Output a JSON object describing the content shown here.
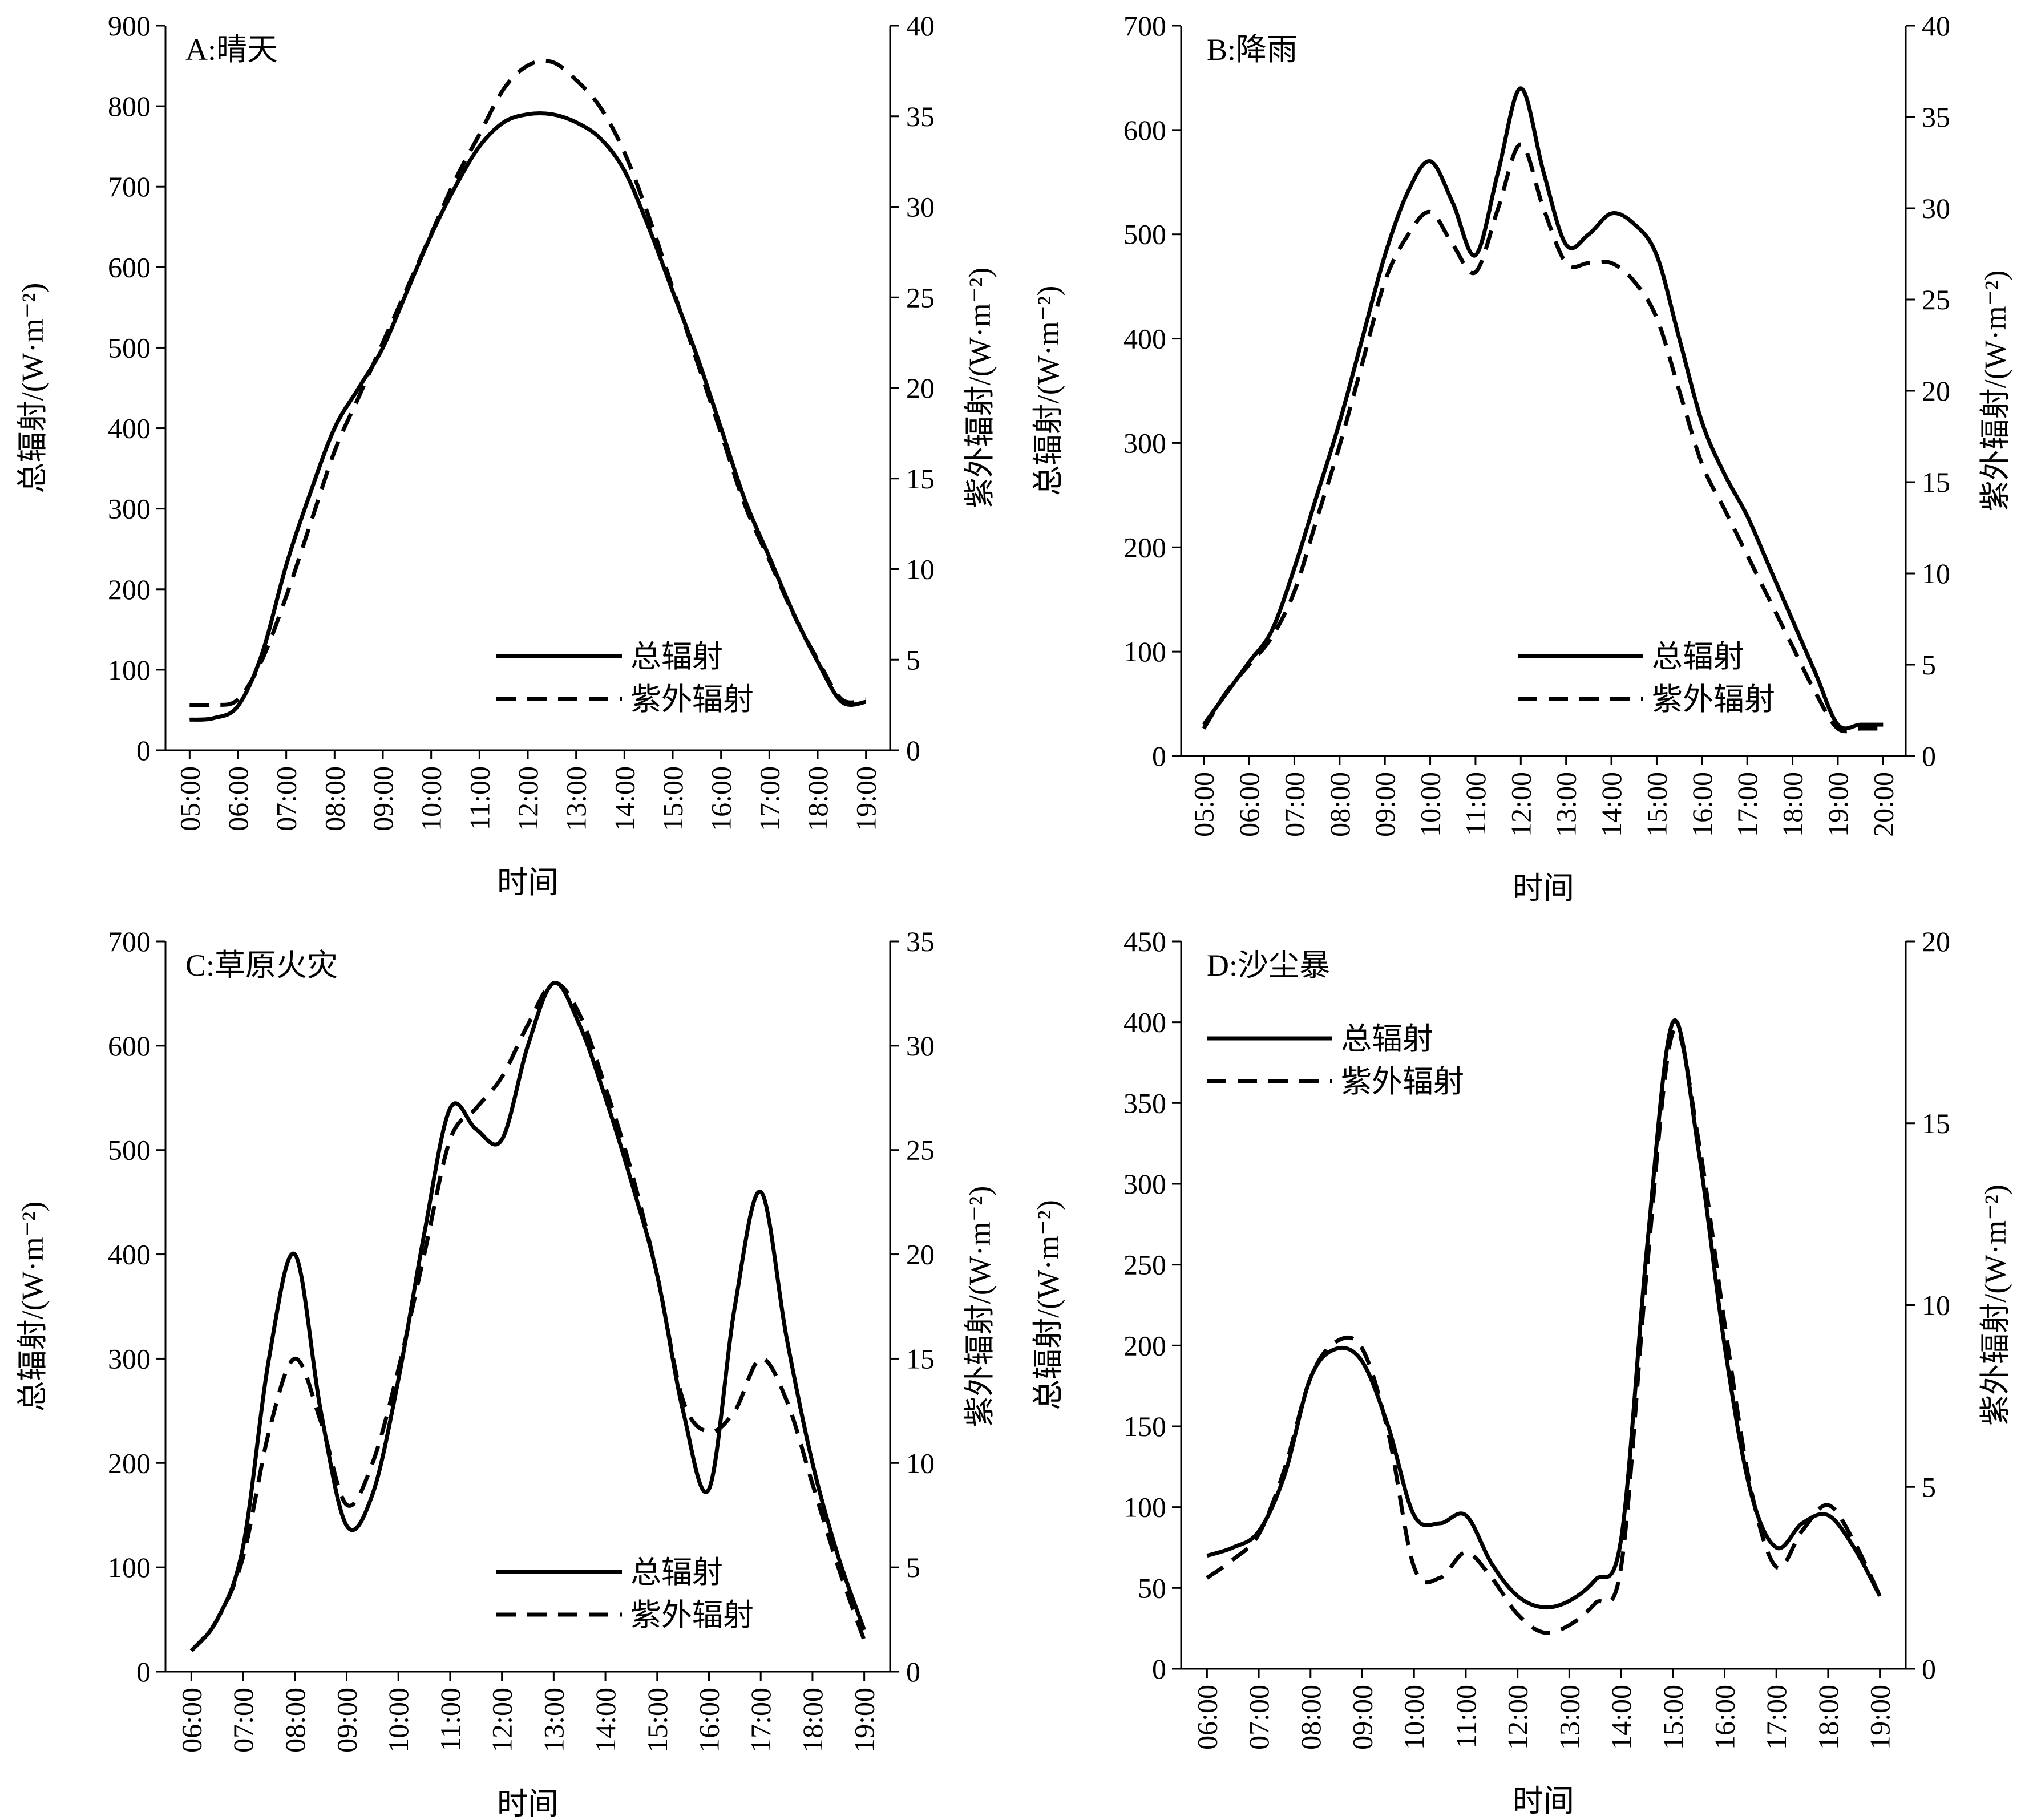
{
  "chart_data": [
    {
      "type": "line",
      "title": "A:晴天",
      "xlabel": "时间",
      "ylabel": "总辐射/(W·m⁻²)",
      "y2label": "紫外辐射/(W·m⁻²)",
      "categories": [
        "05:00",
        "06:00",
        "07:00",
        "08:00",
        "09:00",
        "10:00",
        "11:00",
        "12:00",
        "13:00",
        "14:00",
        "15:00",
        "16:00",
        "17:00",
        "18:00",
        "19:00"
      ],
      "ylim": [
        0,
        900
      ],
      "yticks": [
        0,
        100,
        200,
        300,
        400,
        500,
        600,
        700,
        800,
        900
      ],
      "y2lim": [
        0,
        40
      ],
      "y2ticks": [
        0,
        5,
        10,
        15,
        20,
        25,
        30,
        35,
        40
      ],
      "legend": {
        "position": "lower-right",
        "items": [
          "总辐射",
          "紫外辐射"
        ]
      },
      "grid": false,
      "series": [
        {
          "name": "总辐射",
          "axis": "left",
          "style": "solid",
          "x": [
            0,
            0.5,
            1,
            1.5,
            2,
            2.5,
            3,
            3.5,
            4,
            4.5,
            5,
            5.5,
            6,
            6.5,
            7,
            7.5,
            8,
            8.5,
            9,
            9.5,
            10,
            10.5,
            11,
            11.5,
            12,
            12.5,
            13,
            13.5,
            14
          ],
          "values": [
            38,
            40,
            55,
            120,
            230,
            320,
            400,
            450,
            500,
            570,
            640,
            700,
            750,
            780,
            790,
            790,
            780,
            760,
            720,
            650,
            570,
            490,
            400,
            310,
            240,
            170,
            110,
            60,
            60
          ]
        },
        {
          "name": "紫外辐射",
          "axis": "right",
          "style": "dashed",
          "x": [
            0,
            0.5,
            1,
            1.5,
            2,
            2.5,
            3,
            3.5,
            4,
            4.5,
            5,
            5.5,
            6,
            6.5,
            7,
            7.5,
            8,
            8.5,
            9,
            9.5,
            10,
            10.5,
            11,
            11.5,
            12,
            12.5,
            13,
            13.5,
            14
          ],
          "values": [
            2.5,
            2.5,
            2.8,
            5.0,
            8.5,
            12.5,
            16.5,
            19.5,
            22.5,
            25.5,
            28.5,
            31.5,
            34.0,
            36.5,
            37.8,
            38.0,
            37.0,
            35.5,
            33.0,
            29.5,
            25.5,
            21.5,
            17.5,
            13.5,
            10.5,
            7.5,
            5.0,
            2.8,
            2.8
          ]
        }
      ]
    },
    {
      "type": "line",
      "title": "B:降雨",
      "xlabel": "时间",
      "ylabel": "总辐射/(W·m⁻²)",
      "y2label": "紫外辐射/(W·m⁻²)",
      "categories": [
        "05:00",
        "06:00",
        "07:00",
        "08:00",
        "09:00",
        "10:00",
        "11:00",
        "12:00",
        "13:00",
        "14:00",
        "15:00",
        "16:00",
        "17:00",
        "18:00",
        "19:00",
        "20:00"
      ],
      "ylim": [
        0,
        700
      ],
      "yticks": [
        0,
        100,
        200,
        300,
        400,
        500,
        600,
        700
      ],
      "y2lim": [
        0,
        40
      ],
      "y2ticks": [
        0,
        5,
        10,
        15,
        20,
        25,
        30,
        35,
        40
      ],
      "legend": {
        "position": "lower-right",
        "items": [
          "总辐射",
          "紫外辐射"
        ]
      },
      "grid": false,
      "series": [
        {
          "name": "总辐射",
          "axis": "left",
          "style": "solid",
          "x": [
            0,
            0.5,
            1,
            1.5,
            2,
            2.5,
            3,
            3.5,
            4,
            4.5,
            5,
            5.5,
            6,
            6.5,
            7,
            7.5,
            8,
            8.5,
            9,
            9.5,
            10,
            10.5,
            11,
            11.5,
            12,
            12.5,
            13,
            13.5,
            14,
            14.5,
            15
          ],
          "values": [
            30,
            60,
            90,
            120,
            180,
            250,
            320,
            400,
            480,
            540,
            570,
            530,
            480,
            560,
            640,
            560,
            490,
            500,
            520,
            510,
            480,
            400,
            320,
            270,
            230,
            180,
            130,
            80,
            30,
            30,
            30
          ]
        },
        {
          "name": "紫外辐射",
          "axis": "right",
          "style": "dashed",
          "x": [
            0,
            0.5,
            1,
            1.5,
            2,
            2.5,
            3,
            3.5,
            4,
            4.5,
            5,
            5.5,
            6,
            6.5,
            7,
            7.5,
            8,
            8.5,
            9,
            9.5,
            10,
            10.5,
            11,
            11.5,
            12,
            12.5,
            13,
            13.5,
            14,
            14.5,
            15
          ],
          "values": [
            1.5,
            3.5,
            5.0,
            6.5,
            9.0,
            13.0,
            17.0,
            21.5,
            26.0,
            28.5,
            29.8,
            28.0,
            26.5,
            30.0,
            33.5,
            30.0,
            27.0,
            27.0,
            27.0,
            26.0,
            24.0,
            20.0,
            16.0,
            13.5,
            11.0,
            8.5,
            6.0,
            3.5,
            1.5,
            1.5,
            1.5
          ]
        }
      ]
    },
    {
      "type": "line",
      "title": "C:草原火灾",
      "xlabel": "时间",
      "ylabel": "总辐射/(W·m⁻²)",
      "y2label": "紫外辐射/(W·m⁻²)",
      "categories": [
        "06:00",
        "07:00",
        "08:00",
        "09:00",
        "10:00",
        "11:00",
        "12:00",
        "13:00",
        "14:00",
        "15:00",
        "16:00",
        "17:00",
        "18:00",
        "19:00"
      ],
      "ylim": [
        0,
        700
      ],
      "yticks": [
        0,
        100,
        200,
        300,
        400,
        500,
        600,
        700
      ],
      "y2lim": [
        0,
        35
      ],
      "y2ticks": [
        0,
        5,
        10,
        15,
        20,
        25,
        30,
        35
      ],
      "legend": {
        "position": "lower-right",
        "items": [
          "总辐射",
          "紫外辐射"
        ]
      },
      "grid": false,
      "series": [
        {
          "name": "总辐射",
          "axis": "left",
          "style": "solid",
          "x": [
            0,
            0.5,
            1,
            1.5,
            2,
            2.5,
            3,
            3.5,
            4,
            4.5,
            5,
            5.5,
            6,
            6.5,
            7,
            7.5,
            8,
            8.5,
            9,
            9.5,
            10,
            10.5,
            11,
            11.5,
            12,
            12.5,
            13
          ],
          "values": [
            20,
            50,
            120,
            300,
            400,
            250,
            140,
            170,
            280,
            420,
            540,
            520,
            510,
            600,
            660,
            620,
            550,
            470,
            380,
            250,
            175,
            350,
            460,
            320,
            200,
            110,
            40
          ]
        },
        {
          "name": "紫外辐射",
          "axis": "right",
          "style": "dashed",
          "x": [
            0,
            0.5,
            1,
            1.5,
            2,
            2.5,
            3,
            3.5,
            4,
            4.5,
            5,
            5.5,
            6,
            6.5,
            7,
            7.5,
            8,
            8.5,
            9,
            9.5,
            10,
            10.5,
            11,
            11.5,
            12,
            12.5,
            13
          ],
          "values": [
            1.0,
            2.5,
            5.5,
            11.5,
            15.0,
            12.0,
            8.0,
            10.0,
            14.5,
            20.0,
            25.5,
            27.0,
            28.5,
            31.0,
            33.0,
            31.5,
            28.0,
            24.0,
            19.0,
            13.0,
            11.5,
            12.5,
            15.0,
            13.0,
            9.0,
            5.0,
            1.5
          ]
        }
      ]
    },
    {
      "type": "line",
      "title": "D:沙尘暴",
      "xlabel": "时间",
      "ylabel": "总辐射/(W·m⁻²)",
      "y2label": "紫外辐射/(W·m⁻²)",
      "categories": [
        "06:00",
        "07:00",
        "08:00",
        "09:00",
        "10:00",
        "11:00",
        "12:00",
        "13:00",
        "14:00",
        "15:00",
        "16:00",
        "17:00",
        "18:00",
        "19:00"
      ],
      "ylim": [
        0,
        450
      ],
      "yticks": [
        0,
        50,
        100,
        150,
        200,
        250,
        300,
        350,
        400,
        450
      ],
      "y2lim": [
        0,
        20
      ],
      "y2ticks": [
        0,
        5,
        10,
        15,
        20
      ],
      "legend": {
        "position": "top-left",
        "items": [
          "总辐射",
          "紫外辐射"
        ]
      },
      "grid": false,
      "series": [
        {
          "name": "总辐射",
          "axis": "left",
          "style": "solid",
          "x": [
            0,
            0.5,
            1,
            1.5,
            2,
            2.5,
            3,
            3.5,
            4,
            4.5,
            5,
            5.5,
            6,
            6.5,
            7,
            7.5,
            8,
            8.5,
            9,
            9.5,
            10,
            10.5,
            11,
            11.5,
            12,
            12.5,
            13
          ],
          "values": [
            70,
            75,
            85,
            120,
            180,
            198,
            190,
            150,
            95,
            90,
            95,
            65,
            45,
            38,
            42,
            55,
            80,
            260,
            400,
            320,
            200,
            110,
            75,
            90,
            95,
            75,
            45
          ]
        },
        {
          "name": "紫外辐射",
          "axis": "right",
          "style": "dashed",
          "x": [
            0,
            0.5,
            1,
            1.5,
            2,
            2.5,
            3,
            3.5,
            4,
            4.5,
            5,
            5.5,
            6,
            6.5,
            7,
            7.5,
            8,
            8.5,
            9,
            9.5,
            10,
            10.5,
            11,
            11.5,
            12,
            12.5,
            13
          ],
          "values": [
            2.5,
            3.0,
            3.7,
            5.5,
            8.0,
            9.0,
            8.8,
            6.5,
            2.8,
            2.5,
            3.2,
            2.5,
            1.5,
            1.0,
            1.2,
            1.8,
            2.8,
            11.0,
            17.5,
            14.5,
            9.5,
            5.0,
            2.8,
            3.8,
            4.5,
            3.5,
            2.0
          ]
        }
      ]
    }
  ]
}
